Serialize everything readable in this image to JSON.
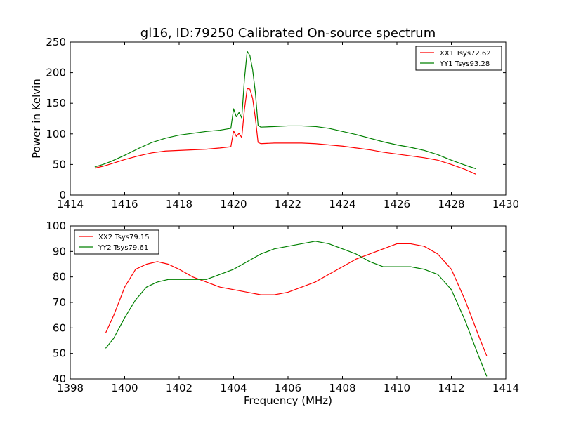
{
  "title": "gl16, ID:79250 Calibrated On-source spectrum",
  "chart_data": [
    {
      "type": "line",
      "ylabel": "Power in Kelvin",
      "xlim": [
        1414,
        1430
      ],
      "ylim": [
        0,
        250
      ],
      "xticks": [
        1414,
        1416,
        1418,
        1420,
        1422,
        1424,
        1426,
        1428,
        1430
      ],
      "yticks": [
        0,
        50,
        100,
        150,
        200,
        250
      ],
      "grid": false,
      "legend_position": "top-right",
      "series": [
        {
          "name": "XX1 Tsys72.62",
          "color": "#ff0000",
          "points": [
            [
              1414.9,
              44
            ],
            [
              1415.2,
              47
            ],
            [
              1415.5,
              51
            ],
            [
              1416.0,
              58
            ],
            [
              1416.5,
              64
            ],
            [
              1417.0,
              69
            ],
            [
              1417.5,
              72
            ],
            [
              1418.0,
              73
            ],
            [
              1418.5,
              74
            ],
            [
              1419.0,
              75
            ],
            [
              1419.5,
              77
            ],
            [
              1419.9,
              79
            ],
            [
              1420.0,
              105
            ],
            [
              1420.1,
              96
            ],
            [
              1420.2,
              101
            ],
            [
              1420.3,
              94
            ],
            [
              1420.4,
              140
            ],
            [
              1420.5,
              174
            ],
            [
              1420.6,
              173
            ],
            [
              1420.7,
              158
            ],
            [
              1420.8,
              126
            ],
            [
              1420.9,
              86
            ],
            [
              1421.0,
              84
            ],
            [
              1421.5,
              85
            ],
            [
              1422.0,
              85
            ],
            [
              1422.5,
              85
            ],
            [
              1423.0,
              84
            ],
            [
              1423.5,
              82
            ],
            [
              1424.0,
              80
            ],
            [
              1424.5,
              77
            ],
            [
              1425.0,
              74
            ],
            [
              1425.5,
              70
            ],
            [
              1426.0,
              67
            ],
            [
              1426.5,
              64
            ],
            [
              1427.0,
              61
            ],
            [
              1427.5,
              57
            ],
            [
              1428.0,
              50
            ],
            [
              1428.5,
              42
            ],
            [
              1428.9,
              34
            ]
          ]
        },
        {
          "name": "YY1 Tsys93.28",
          "color": "#008000",
          "points": [
            [
              1414.9,
              46
            ],
            [
              1415.2,
              50
            ],
            [
              1415.5,
              55
            ],
            [
              1416.0,
              65
            ],
            [
              1416.5,
              76
            ],
            [
              1417.0,
              86
            ],
            [
              1417.5,
              93
            ],
            [
              1418.0,
              98
            ],
            [
              1418.5,
              101
            ],
            [
              1419.0,
              104
            ],
            [
              1419.5,
              106
            ],
            [
              1419.9,
              109
            ],
            [
              1420.0,
              141
            ],
            [
              1420.1,
              128
            ],
            [
              1420.2,
              135
            ],
            [
              1420.3,
              126
            ],
            [
              1420.4,
              190
            ],
            [
              1420.5,
              235
            ],
            [
              1420.6,
              228
            ],
            [
              1420.7,
              205
            ],
            [
              1420.8,
              168
            ],
            [
              1420.9,
              114
            ],
            [
              1421.0,
              111
            ],
            [
              1421.5,
              112
            ],
            [
              1422.0,
              113
            ],
            [
              1422.5,
              113
            ],
            [
              1423.0,
              112
            ],
            [
              1423.5,
              109
            ],
            [
              1424.0,
              104
            ],
            [
              1424.5,
              99
            ],
            [
              1425.0,
              93
            ],
            [
              1425.5,
              87
            ],
            [
              1426.0,
              82
            ],
            [
              1426.5,
              78
            ],
            [
              1427.0,
              73
            ],
            [
              1427.5,
              66
            ],
            [
              1428.0,
              57
            ],
            [
              1428.5,
              49
            ],
            [
              1428.9,
              43
            ]
          ]
        }
      ]
    },
    {
      "type": "line",
      "xlabel": "Frequency (MHz)",
      "xlim": [
        1398,
        1414
      ],
      "ylim": [
        40,
        100
      ],
      "xticks": [
        1398,
        1400,
        1402,
        1404,
        1406,
        1408,
        1410,
        1412,
        1414
      ],
      "yticks": [
        40,
        50,
        60,
        70,
        80,
        90,
        100
      ],
      "grid": false,
      "legend_position": "top-left",
      "series": [
        {
          "name": "XX2 Tsys79.15",
          "color": "#ff0000",
          "points": [
            [
              1399.3,
              58
            ],
            [
              1399.6,
              65
            ],
            [
              1400.0,
              76
            ],
            [
              1400.4,
              83
            ],
            [
              1400.8,
              85
            ],
            [
              1401.2,
              86
            ],
            [
              1401.6,
              85
            ],
            [
              1402.0,
              83
            ],
            [
              1402.5,
              80
            ],
            [
              1403.0,
              78
            ],
            [
              1403.5,
              76
            ],
            [
              1404.0,
              75
            ],
            [
              1404.5,
              74
            ],
            [
              1405.0,
              73
            ],
            [
              1405.5,
              73
            ],
            [
              1406.0,
              74
            ],
            [
              1406.5,
              76
            ],
            [
              1407.0,
              78
            ],
            [
              1407.5,
              81
            ],
            [
              1408.0,
              84
            ],
            [
              1408.5,
              87
            ],
            [
              1409.0,
              89
            ],
            [
              1409.5,
              91
            ],
            [
              1410.0,
              93
            ],
            [
              1410.5,
              93
            ],
            [
              1411.0,
              92
            ],
            [
              1411.5,
              89
            ],
            [
              1412.0,
              83
            ],
            [
              1412.5,
              71
            ],
            [
              1413.0,
              57
            ],
            [
              1413.3,
              49
            ]
          ]
        },
        {
          "name": "YY2 Tsys79.61",
          "color": "#008000",
          "points": [
            [
              1399.3,
              52
            ],
            [
              1399.6,
              56
            ],
            [
              1400.0,
              64
            ],
            [
              1400.4,
              71
            ],
            [
              1400.8,
              76
            ],
            [
              1401.2,
              78
            ],
            [
              1401.6,
              79
            ],
            [
              1402.0,
              79
            ],
            [
              1402.5,
              79
            ],
            [
              1403.0,
              79
            ],
            [
              1403.5,
              81
            ],
            [
              1404.0,
              83
            ],
            [
              1404.5,
              86
            ],
            [
              1405.0,
              89
            ],
            [
              1405.5,
              91
            ],
            [
              1406.0,
              92
            ],
            [
              1406.5,
              93
            ],
            [
              1407.0,
              94
            ],
            [
              1407.5,
              93
            ],
            [
              1408.0,
              91
            ],
            [
              1408.5,
              89
            ],
            [
              1409.0,
              86
            ],
            [
              1409.5,
              84
            ],
            [
              1410.0,
              84
            ],
            [
              1410.5,
              84
            ],
            [
              1411.0,
              83
            ],
            [
              1411.5,
              81
            ],
            [
              1412.0,
              75
            ],
            [
              1412.5,
              63
            ],
            [
              1413.0,
              49
            ],
            [
              1413.3,
              41
            ]
          ]
        }
      ]
    }
  ]
}
